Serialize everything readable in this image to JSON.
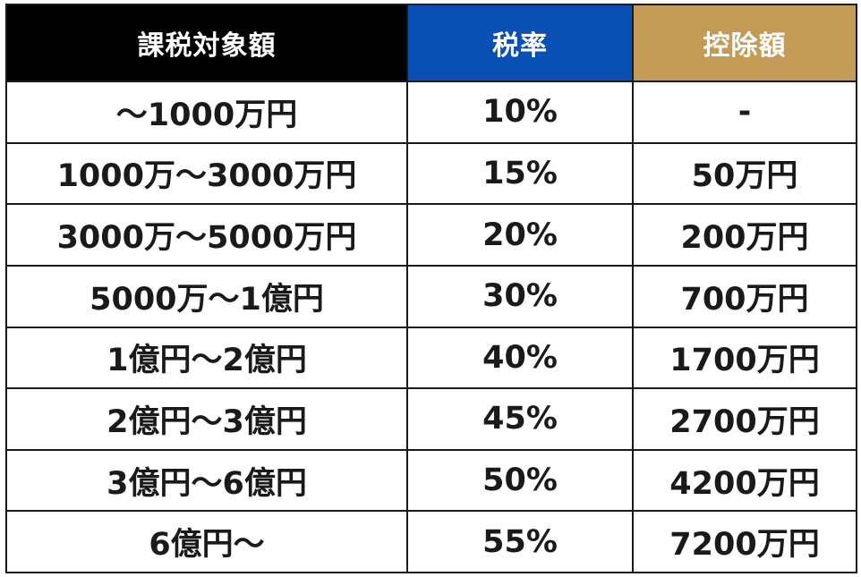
{
  "header": {
    "amount": "課税対象額",
    "rate": "税率",
    "deduction": "控除額"
  },
  "colors": {
    "amount_header": "#000000",
    "rate_header": "#0a4fb3",
    "deduction_header": "#c49a57"
  },
  "rows": [
    {
      "amount": "～1000万円",
      "rate": "10%",
      "deduction": "-"
    },
    {
      "amount": "1000万～3000万円",
      "rate": "15%",
      "deduction": "50万円"
    },
    {
      "amount": "3000万～5000万円",
      "rate": "20%",
      "deduction": "200万円"
    },
    {
      "amount": "5000万～1億円",
      "rate": "30%",
      "deduction": "700万円"
    },
    {
      "amount": "1億円～2億円",
      "rate": "40%",
      "deduction": "1700万円"
    },
    {
      "amount": "2億円～3億円",
      "rate": "45%",
      "deduction": "2700万円"
    },
    {
      "amount": "3億円～6億円",
      "rate": "50%",
      "deduction": "4200万円"
    },
    {
      "amount": "6億円～",
      "rate": "55%",
      "deduction": "7200万円"
    }
  ]
}
